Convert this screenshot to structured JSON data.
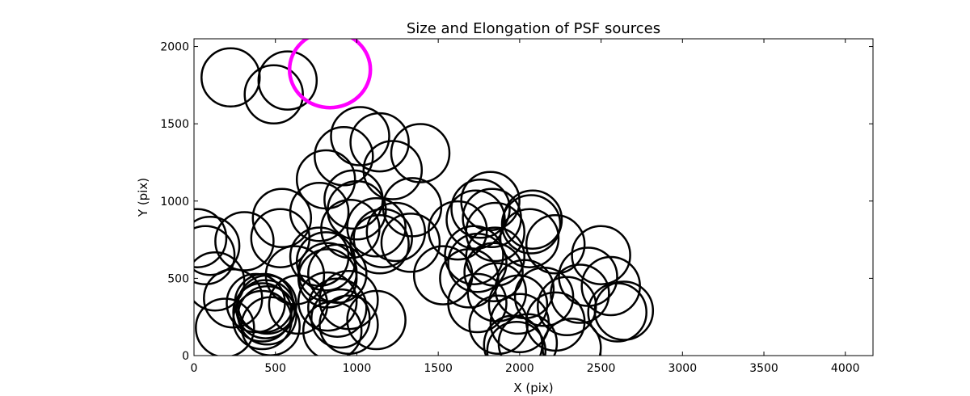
{
  "chart_data": {
    "type": "scatter",
    "title": "Size and Elongation of PSF sources",
    "xlabel": "X (pix)",
    "ylabel": "Y (pix)",
    "xlim": [
      0,
      4170
    ],
    "ylim": [
      0,
      2050
    ],
    "xticks": [
      0,
      500,
      1000,
      1500,
      2000,
      2500,
      3000,
      3500,
      4000
    ],
    "yticks": [
      0,
      500,
      1000,
      1500,
      2000
    ],
    "grid": false,
    "legend": "none",
    "colors": {
      "default": "#000000",
      "highlight": "#ff00ff"
    },
    "series": [
      {
        "color": "#000000",
        "points": [
          [
            225,
            1800
          ],
          [
            575,
            1780
          ],
          [
            490,
            1690
          ],
          [
            1020,
            1420
          ],
          [
            1140,
            1380
          ],
          [
            1390,
            1310
          ],
          [
            920,
            1290
          ],
          [
            1220,
            1200
          ],
          [
            810,
            1140
          ],
          [
            980,
            1010
          ],
          [
            1340,
            960
          ],
          [
            1000,
            940
          ],
          [
            770,
            930
          ],
          [
            540,
            890
          ],
          [
            960,
            820
          ],
          [
            1120,
            830
          ],
          [
            1240,
            800
          ],
          [
            20,
            760
          ],
          [
            310,
            740
          ],
          [
            530,
            760
          ],
          [
            1330,
            730
          ],
          [
            100,
            710
          ],
          [
            1140,
            720
          ],
          [
            770,
            640
          ],
          [
            1160,
            760
          ],
          [
            70,
            650
          ],
          [
            810,
            610
          ],
          [
            130,
            480
          ],
          [
            1530,
            520
          ],
          [
            1620,
            810
          ],
          [
            1850,
            800
          ],
          [
            1820,
            1000
          ],
          [
            1760,
            950
          ],
          [
            1730,
            880
          ],
          [
            1830,
            890
          ],
          [
            2080,
            880
          ],
          [
            2070,
            850
          ],
          [
            2060,
            760
          ],
          [
            2220,
            720
          ],
          [
            2500,
            650
          ],
          [
            1720,
            650
          ],
          [
            1740,
            600
          ],
          [
            1850,
            640
          ],
          [
            1840,
            540
          ],
          [
            1690,
            500
          ],
          [
            1860,
            410
          ],
          [
            1740,
            340
          ],
          [
            1990,
            330
          ],
          [
            2030,
            430
          ],
          [
            2150,
            380
          ],
          [
            2420,
            510
          ],
          [
            2560,
            450
          ],
          [
            2370,
            400
          ],
          [
            2290,
            320
          ],
          [
            2640,
            290
          ],
          [
            2600,
            280
          ],
          [
            2000,
            210
          ],
          [
            1870,
            200
          ],
          [
            2050,
            80
          ],
          [
            2220,
            220
          ],
          [
            2320,
            50
          ],
          [
            1960,
            70
          ],
          [
            1980,
            30
          ],
          [
            620,
            520
          ],
          [
            820,
            540
          ],
          [
            820,
            500
          ],
          [
            880,
            530
          ],
          [
            430,
            340
          ],
          [
            450,
            330
          ],
          [
            440,
            300
          ],
          [
            420,
            280
          ],
          [
            450,
            260
          ],
          [
            420,
            230
          ],
          [
            470,
            190
          ],
          [
            380,
            340
          ],
          [
            640,
            330
          ],
          [
            820,
            350
          ],
          [
            950,
            360
          ],
          [
            880,
            310
          ],
          [
            900,
            240
          ],
          [
            950,
            200
          ],
          [
            850,
            160
          ],
          [
            190,
            180
          ],
          [
            240,
            370
          ],
          [
            1120,
            230
          ]
        ]
      },
      {
        "color": "#ff00ff",
        "points": [
          [
            835,
            1850
          ]
        ]
      }
    ]
  }
}
